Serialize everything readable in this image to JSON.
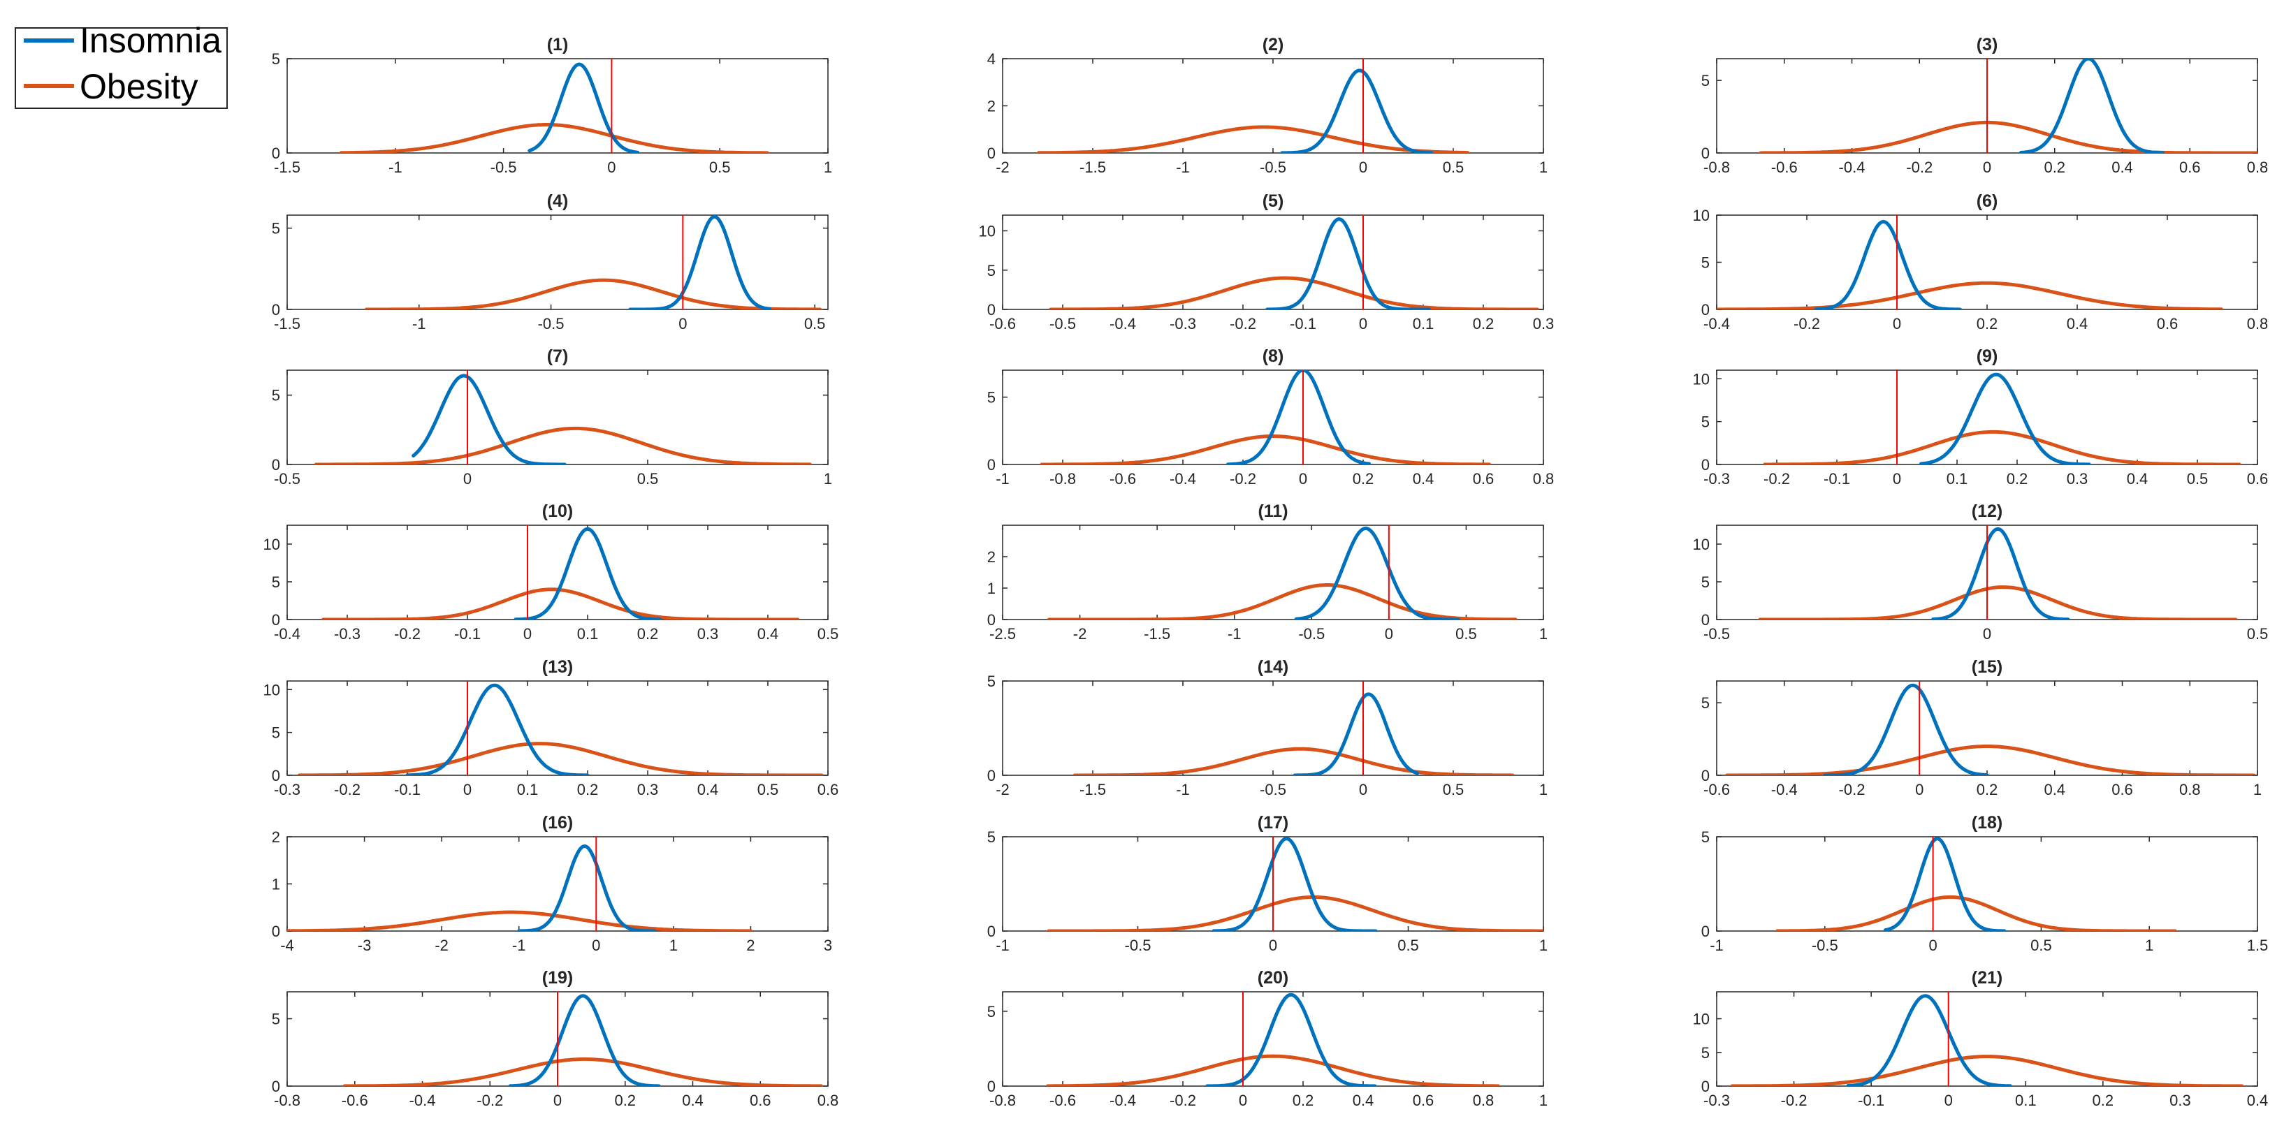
{
  "chart_data": {
    "type": "line",
    "legend": {
      "placement": "top-left outside",
      "entries": [
        {
          "name": "Insomnia",
          "color": "#0072BD"
        },
        {
          "name": "Obesity",
          "color": "#D95319"
        }
      ]
    },
    "reference_line": {
      "x": 0,
      "color": "#FF0000"
    },
    "panels": [
      {
        "title": "(1)",
        "xlim": [
          -1.5,
          1
        ],
        "xticks": [
          "-1.5",
          "-1",
          "-0.5",
          "0",
          "0.5",
          "1"
        ],
        "ylim": [
          0,
          5
        ],
        "yticks": [
          "0",
          "5"
        ],
        "insomnia": {
          "mu": -0.15,
          "sd": 0.085,
          "peak": 4.7,
          "xmin": -0.38,
          "xmax": 0.12
        },
        "obesity": {
          "mu": -0.3,
          "sd": 0.3,
          "peak": 1.5,
          "xmin": -1.25,
          "xmax": 0.72
        }
      },
      {
        "title": "(2)",
        "xlim": [
          -2,
          1
        ],
        "xticks": [
          "-2",
          "-1.5",
          "-1",
          "-0.5",
          "0",
          "0.5",
          "1"
        ],
        "ylim": [
          0,
          4
        ],
        "yticks": [
          "0",
          "2",
          "4"
        ],
        "insomnia": {
          "mu": -0.02,
          "sd": 0.11,
          "peak": 3.5,
          "xmin": -0.45,
          "xmax": 0.38
        },
        "obesity": {
          "mu": -0.55,
          "sd": 0.38,
          "peak": 1.1,
          "xmin": -1.8,
          "xmax": 0.58
        }
      },
      {
        "title": "(3)",
        "xlim": [
          -0.8,
          0.8
        ],
        "xticks": [
          "-0.8",
          "-0.6",
          "-0.4",
          "-0.2",
          "0",
          "0.2",
          "0.4",
          "0.6",
          "0.8"
        ],
        "ylim": [
          0,
          6.5
        ],
        "yticks": [
          "0",
          "5"
        ],
        "insomnia": {
          "mu": 0.3,
          "sd": 0.06,
          "peak": 6.5,
          "xmin": 0.1,
          "xmax": 0.52
        },
        "obesity": {
          "mu": 0.0,
          "sd": 0.18,
          "peak": 2.1,
          "xmin": -0.67,
          "xmax": 0.81
        }
      },
      {
        "title": "(4)",
        "xlim": [
          -1.5,
          0.55
        ],
        "xticks": [
          "-1.5",
          "-1",
          "-0.5",
          "0",
          "0.5"
        ],
        "ylim": [
          0,
          5.8
        ],
        "yticks": [
          "0",
          "5"
        ],
        "insomnia": {
          "mu": 0.12,
          "sd": 0.065,
          "peak": 5.7,
          "xmin": -0.2,
          "xmax": 0.33
        },
        "obesity": {
          "mu": -0.3,
          "sd": 0.22,
          "peak": 1.8,
          "xmin": -1.2,
          "xmax": 0.52
        }
      },
      {
        "title": "(5)",
        "xlim": [
          -0.6,
          0.3
        ],
        "xticks": [
          "-0.6",
          "-0.5",
          "-0.4",
          "-0.3",
          "-0.2",
          "-0.1",
          "0",
          "0.1",
          "0.2",
          "0.3"
        ],
        "ylim": [
          0,
          12
        ],
        "yticks": [
          "0",
          "5",
          "10"
        ],
        "insomnia": {
          "mu": -0.04,
          "sd": 0.03,
          "peak": 11.5,
          "xmin": -0.16,
          "xmax": 0.11
        },
        "obesity": {
          "mu": -0.13,
          "sd": 0.1,
          "peak": 4.0,
          "xmin": -0.52,
          "xmax": 0.29
        }
      },
      {
        "title": "(6)",
        "xlim": [
          -0.4,
          0.8
        ],
        "xticks": [
          "-0.4",
          "-0.2",
          "0",
          "0.2",
          "0.4",
          "0.6",
          "0.8"
        ],
        "ylim": [
          0,
          10
        ],
        "yticks": [
          "0",
          "5",
          "10"
        ],
        "insomnia": {
          "mu": -0.03,
          "sd": 0.042,
          "peak": 9.3,
          "xmin": -0.18,
          "xmax": 0.14
        },
        "obesity": {
          "mu": 0.2,
          "sd": 0.16,
          "peak": 2.8,
          "xmin": -0.4,
          "xmax": 0.72
        }
      },
      {
        "title": "(7)",
        "xlim": [
          -0.5,
          1
        ],
        "xticks": [
          "-0.5",
          "0",
          "0.5",
          "1"
        ],
        "ylim": [
          0,
          6.8
        ],
        "yticks": [
          "0",
          "5"
        ],
        "insomnia": {
          "mu": -0.01,
          "sd": 0.065,
          "peak": 6.4,
          "xmin": -0.15,
          "xmax": 0.27
        },
        "obesity": {
          "mu": 0.3,
          "sd": 0.18,
          "peak": 2.6,
          "xmin": -0.42,
          "xmax": 0.95
        }
      },
      {
        "title": "(8)",
        "xlim": [
          -1,
          0.8
        ],
        "xticks": [
          "-1",
          "-0.8",
          "-0.6",
          "-0.4",
          "-0.2",
          "0",
          "0.2",
          "0.4",
          "0.6",
          "0.8"
        ],
        "ylim": [
          0,
          7
        ],
        "yticks": [
          "0",
          "5"
        ],
        "insomnia": {
          "mu": 0.0,
          "sd": 0.07,
          "peak": 7.0,
          "xmin": -0.25,
          "xmax": 0.22
        },
        "obesity": {
          "mu": -0.1,
          "sd": 0.2,
          "peak": 2.1,
          "xmin": -0.87,
          "xmax": 0.62
        }
      },
      {
        "title": "(9)",
        "xlim": [
          -0.3,
          0.6
        ],
        "xticks": [
          "-0.3",
          "-0.2",
          "-0.1",
          "0",
          "0.1",
          "0.2",
          "0.3",
          "0.4",
          "0.5",
          "0.6"
        ],
        "ylim": [
          0,
          11
        ],
        "yticks": [
          "0",
          "5",
          "10"
        ],
        "insomnia": {
          "mu": 0.165,
          "sd": 0.04,
          "peak": 10.5,
          "xmin": 0.04,
          "xmax": 0.32
        },
        "obesity": {
          "mu": 0.16,
          "sd": 0.1,
          "peak": 3.8,
          "xmin": -0.22,
          "xmax": 0.57
        }
      },
      {
        "title": "(10)",
        "xlim": [
          -0.4,
          0.5
        ],
        "xticks": [
          "-0.4",
          "-0.3",
          "-0.2",
          "-0.1",
          "0",
          "0.1",
          "0.2",
          "0.3",
          "0.4",
          "0.5"
        ],
        "ylim": [
          0,
          12.5
        ],
        "yticks": [
          "0",
          "5",
          "10"
        ],
        "insomnia": {
          "mu": 0.1,
          "sd": 0.032,
          "peak": 12.0,
          "xmin": -0.02,
          "xmax": 0.22
        },
        "obesity": {
          "mu": 0.04,
          "sd": 0.08,
          "peak": 4.0,
          "xmin": -0.34,
          "xmax": 0.45
        }
      },
      {
        "title": "(11)",
        "xlim": [
          -2.5,
          1
        ],
        "xticks": [
          "-2.5",
          "-2",
          "-1.5",
          "-1",
          "-0.5",
          "0",
          "0.5",
          "1"
        ],
        "ylim": [
          0,
          3
        ],
        "yticks": [
          "0",
          "1",
          "2"
        ],
        "insomnia": {
          "mu": -0.15,
          "sd": 0.14,
          "peak": 2.9,
          "xmin": -0.6,
          "xmax": 0.45
        },
        "obesity": {
          "mu": -0.4,
          "sd": 0.33,
          "peak": 1.1,
          "xmin": -2.2,
          "xmax": 0.82
        }
      },
      {
        "title": "(12)",
        "xlim": [
          -0.5,
          0.5
        ],
        "xticks": [
          "-0.5",
          "0",
          "0.5"
        ],
        "ylim": [
          0,
          12.5
        ],
        "yticks": [
          "0",
          "5",
          "10"
        ],
        "insomnia": {
          "mu": 0.02,
          "sd": 0.035,
          "peak": 12.0,
          "xmin": -0.1,
          "xmax": 0.15
        },
        "obesity": {
          "mu": 0.03,
          "sd": 0.09,
          "peak": 4.3,
          "xmin": -0.42,
          "xmax": 0.46
        }
      },
      {
        "title": "(13)",
        "xlim": [
          -0.3,
          0.6
        ],
        "xticks": [
          "-0.3",
          "-0.2",
          "-0.1",
          "0",
          "0.1",
          "0.2",
          "0.3",
          "0.4",
          "0.5",
          "0.6"
        ],
        "ylim": [
          0,
          11
        ],
        "yticks": [
          "0",
          "5",
          "10"
        ],
        "insomnia": {
          "mu": 0.045,
          "sd": 0.04,
          "peak": 10.5,
          "xmin": -0.1,
          "xmax": 0.2
        },
        "obesity": {
          "mu": 0.12,
          "sd": 0.11,
          "peak": 3.7,
          "xmin": -0.28,
          "xmax": 0.59
        }
      },
      {
        "title": "(14)",
        "xlim": [
          -2,
          1
        ],
        "xticks": [
          "-2",
          "-1.5",
          "-1",
          "-0.5",
          "0",
          "0.5",
          "1"
        ],
        "ylim": [
          0,
          5
        ],
        "yticks": [
          "0",
          "5"
        ],
        "insomnia": {
          "mu": 0.03,
          "sd": 0.1,
          "peak": 4.3,
          "xmin": -0.38,
          "xmax": 0.3
        },
        "obesity": {
          "mu": -0.35,
          "sd": 0.32,
          "peak": 1.4,
          "xmin": -1.6,
          "xmax": 0.83
        }
      },
      {
        "title": "(15)",
        "xlim": [
          -0.6,
          1
        ],
        "xticks": [
          "-0.6",
          "-0.4",
          "-0.2",
          "0",
          "0.2",
          "0.4",
          "0.6",
          "0.8",
          "1"
        ],
        "ylim": [
          0,
          6.5
        ],
        "yticks": [
          "0",
          "5"
        ],
        "insomnia": {
          "mu": -0.02,
          "sd": 0.065,
          "peak": 6.2,
          "xmin": -0.28,
          "xmax": 0.2
        },
        "obesity": {
          "mu": 0.2,
          "sd": 0.2,
          "peak": 2.0,
          "xmin": -0.57,
          "xmax": 0.99
        }
      },
      {
        "title": "(16)",
        "xlim": [
          -4,
          3
        ],
        "xticks": [
          "-4",
          "-3",
          "-2",
          "-1",
          "0",
          "1",
          "2",
          "3"
        ],
        "ylim": [
          0,
          2
        ],
        "yticks": [
          "0",
          "1",
          "2"
        ],
        "insomnia": {
          "mu": -0.15,
          "sd": 0.22,
          "peak": 1.8,
          "xmin": -1.0,
          "xmax": 0.75
        },
        "obesity": {
          "mu": -1.1,
          "sd": 0.9,
          "peak": 0.4,
          "xmin": -4.0,
          "xmax": 2.0
        }
      },
      {
        "title": "(17)",
        "xlim": [
          -1,
          1
        ],
        "xticks": [
          "-1",
          "-0.5",
          "0",
          "0.5",
          "1"
        ],
        "ylim": [
          0,
          5
        ],
        "yticks": [
          "0",
          "5"
        ],
        "insomnia": {
          "mu": 0.05,
          "sd": 0.07,
          "peak": 4.9,
          "xmin": -0.22,
          "xmax": 0.38
        },
        "obesity": {
          "mu": 0.15,
          "sd": 0.22,
          "peak": 1.8,
          "xmin": -0.83,
          "xmax": 1.0
        }
      },
      {
        "title": "(18)",
        "xlim": [
          -1,
          1.5
        ],
        "xticks": [
          "-1",
          "-0.5",
          "0",
          "0.5",
          "1",
          "1.5"
        ],
        "ylim": [
          0,
          5
        ],
        "yticks": [
          "0",
          "5"
        ],
        "insomnia": {
          "mu": 0.02,
          "sd": 0.08,
          "peak": 4.9,
          "xmin": -0.22,
          "xmax": 0.33
        },
        "obesity": {
          "mu": 0.08,
          "sd": 0.22,
          "peak": 1.8,
          "xmin": -0.72,
          "xmax": 1.12
        }
      },
      {
        "title": "(19)",
        "xlim": [
          -0.8,
          0.8
        ],
        "xticks": [
          "-0.8",
          "-0.6",
          "-0.4",
          "-0.2",
          "0",
          "0.2",
          "0.4",
          "0.6",
          "0.8"
        ],
        "ylim": [
          0,
          7
        ],
        "yticks": [
          "0",
          "5"
        ],
        "insomnia": {
          "mu": 0.075,
          "sd": 0.06,
          "peak": 6.7,
          "xmin": -0.14,
          "xmax": 0.3
        },
        "obesity": {
          "mu": 0.08,
          "sd": 0.2,
          "peak": 2.0,
          "xmin": -0.63,
          "xmax": 0.78
        }
      },
      {
        "title": "(20)",
        "xlim": [
          -0.8,
          1
        ],
        "xticks": [
          "-0.8",
          "-0.6",
          "-0.4",
          "-0.2",
          "0",
          "0.2",
          "0.4",
          "0.6",
          "0.8",
          "1"
        ],
        "ylim": [
          0,
          6.3
        ],
        "yticks": [
          "0",
          "5"
        ],
        "insomnia": {
          "mu": 0.16,
          "sd": 0.07,
          "peak": 6.1,
          "xmin": -0.12,
          "xmax": 0.44
        },
        "obesity": {
          "mu": 0.1,
          "sd": 0.22,
          "peak": 2.0,
          "xmin": -0.65,
          "xmax": 0.85
        }
      },
      {
        "title": "(21)",
        "xlim": [
          -0.3,
          0.4
        ],
        "xticks": [
          "-0.3",
          "-0.2",
          "-0.1",
          "0",
          "0.1",
          "0.2",
          "0.3",
          "0.4"
        ],
        "ylim": [
          0,
          14
        ],
        "yticks": [
          "0",
          "5",
          "10"
        ],
        "insomnia": {
          "mu": -0.03,
          "sd": 0.03,
          "peak": 13.4,
          "xmin": -0.13,
          "xmax": 0.08
        },
        "obesity": {
          "mu": 0.05,
          "sd": 0.09,
          "peak": 4.4,
          "xmin": -0.28,
          "xmax": 0.38
        }
      }
    ]
  }
}
